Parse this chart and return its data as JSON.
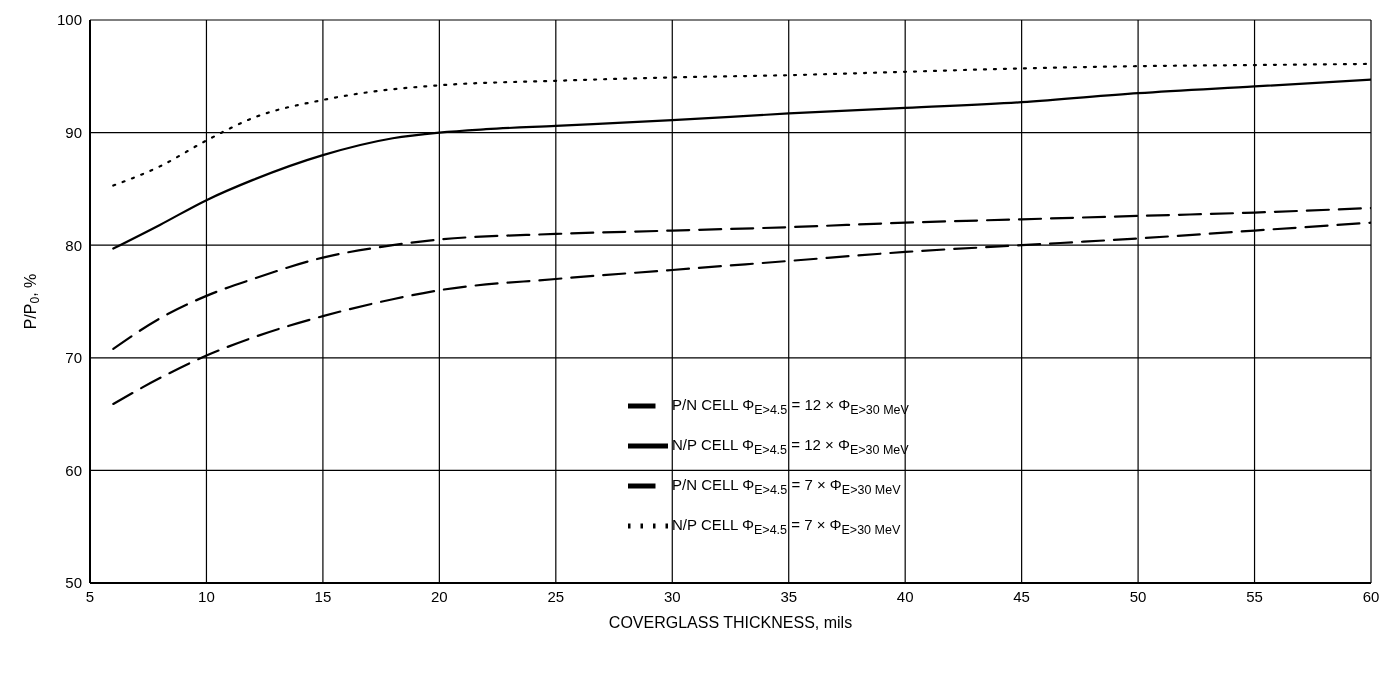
{
  "chart_data": {
    "type": "line",
    "xlabel": "COVERGLASS THICKNESS, mils",
    "ylabel": "P/P$_{0}$, %",
    "xlim": [
      5,
      60
    ],
    "xticks": [
      5,
      10,
      15,
      20,
      25,
      30,
      35,
      40,
      45,
      50,
      55,
      60
    ],
    "ylim": [
      50,
      100
    ],
    "yticks": [
      50,
      60,
      70,
      80,
      90,
      100
    ],
    "grid": true,
    "legend": "bottom right",
    "series": [
      {
        "name": "P/N CELL Φ$_{E>4.5}$ = 12 × Φ$_{E>30 MeV}$",
        "color": "#000000",
        "line_style": "dashed",
        "x": [
          6,
          8,
          10,
          12,
          15,
          18,
          20,
          25,
          30,
          35,
          40,
          45,
          50,
          55,
          60
        ],
        "values": [
          65.9,
          68.2,
          70.2,
          71.8,
          73.7,
          75.2,
          76,
          77,
          77.8,
          78.6,
          79.4,
          80,
          80.6,
          81.3,
          82
        ]
      },
      {
        "name": "N/P CELL Φ$_{E>4.5}$ = 12 × Φ$_{E>30 MeV}$",
        "color": "#000000",
        "line_style": "solid",
        "x": [
          6,
          8,
          10,
          12,
          15,
          18,
          20,
          22,
          25,
          30,
          35,
          40,
          45,
          50,
          55,
          60
        ],
        "values": [
          79.7,
          81.8,
          84,
          85.8,
          88,
          89.5,
          90,
          90.3,
          90.6,
          91.1,
          91.7,
          92.2,
          92.7,
          93.5,
          94.1,
          94.7
        ]
      },
      {
        "name": "P/N CELL Φ$_{E>4.5}$ =  7 × Φ$_{E>30 MeV}$",
        "color": "#000000",
        "line_style": "dashed",
        "x": [
          6,
          8,
          10,
          12,
          15,
          18,
          20,
          25,
          30,
          35,
          40,
          45,
          50,
          55,
          60
        ],
        "values": [
          70.8,
          73.5,
          75.5,
          77,
          78.9,
          80,
          80.5,
          81,
          81.3,
          81.6,
          82,
          82.3,
          82.6,
          82.9,
          83.3
        ]
      },
      {
        "name": "N/P CELL Φ$_{E>4.5}$ =  7 × Φ$_{E>30 MeV}$",
        "color": "#000000",
        "line_style": "dotted",
        "x": [
          6,
          8,
          10,
          12,
          15,
          17,
          20,
          25,
          30,
          35,
          40,
          45,
          50,
          55,
          60
        ],
        "values": [
          85.3,
          87,
          89.3,
          91.3,
          92.9,
          93.6,
          94.2,
          94.6,
          94.9,
          95.1,
          95.4,
          95.7,
          95.9,
          96,
          96.1
        ]
      }
    ]
  }
}
